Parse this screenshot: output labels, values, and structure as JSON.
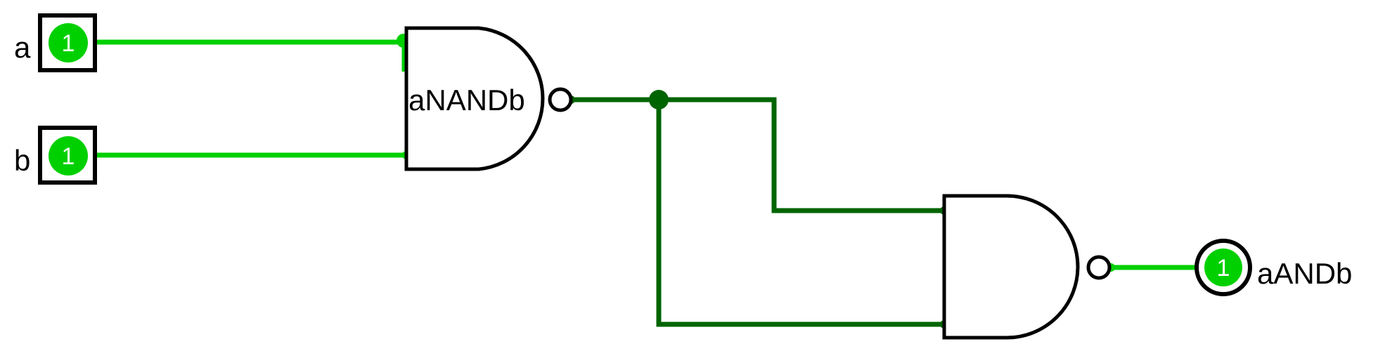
{
  "colors": {
    "wire_high": "#00d000",
    "wire_internal": "#006400",
    "pin_fill": "#00d000",
    "outline": "#000000"
  },
  "inputs": [
    {
      "label": "a",
      "value": "1"
    },
    {
      "label": "b",
      "value": "1"
    }
  ],
  "gates": [
    {
      "type": "NAND",
      "label": "aNANDb"
    },
    {
      "type": "NAND",
      "label": ""
    }
  ],
  "outputs": [
    {
      "label": "aANDb",
      "value": "1"
    }
  ]
}
